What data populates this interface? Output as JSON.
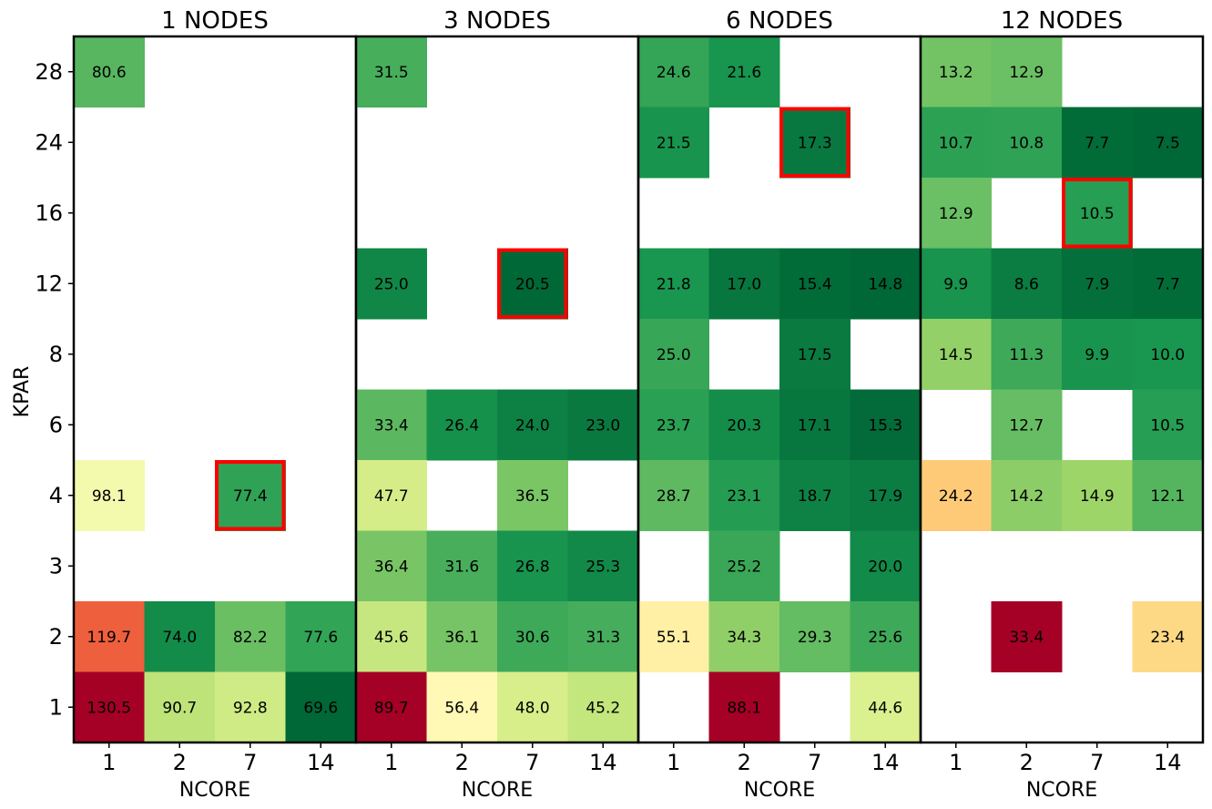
{
  "chart_data": {
    "type": "heatmap",
    "colormap": "RdYlGn_r",
    "ylabel": "KPAR",
    "y_ticks": [
      "28",
      "24",
      "16",
      "12",
      "8",
      "6",
      "4",
      "3",
      "2",
      "1"
    ],
    "highlight_color": "#ff0000",
    "panels": [
      {
        "title": "1 NODES",
        "xlabel": "NCORE",
        "x_ticks": [
          "1",
          "2",
          "7",
          "14"
        ],
        "cells": [
          {
            "kpar": "28",
            "ncore": "1",
            "value": 80.6
          },
          {
            "kpar": "4",
            "ncore": "1",
            "value": 98.1
          },
          {
            "kpar": "4",
            "ncore": "7",
            "value": 77.4,
            "highlight": true
          },
          {
            "kpar": "2",
            "ncore": "1",
            "value": 119.7
          },
          {
            "kpar": "2",
            "ncore": "2",
            "value": 74.0
          },
          {
            "kpar": "2",
            "ncore": "7",
            "value": 82.2
          },
          {
            "kpar": "2",
            "ncore": "14",
            "value": 77.6
          },
          {
            "kpar": "1",
            "ncore": "1",
            "value": 130.5
          },
          {
            "kpar": "1",
            "ncore": "2",
            "value": 90.7
          },
          {
            "kpar": "1",
            "ncore": "7",
            "value": 92.8
          },
          {
            "kpar": "1",
            "ncore": "14",
            "value": 69.6
          }
        ]
      },
      {
        "title": "3 NODES",
        "xlabel": "NCORE",
        "x_ticks": [
          "1",
          "2",
          "7",
          "14"
        ],
        "cells": [
          {
            "kpar": "28",
            "ncore": "1",
            "value": 31.5
          },
          {
            "kpar": "12",
            "ncore": "1",
            "value": 25.0
          },
          {
            "kpar": "12",
            "ncore": "7",
            "value": 20.5,
            "highlight": true
          },
          {
            "kpar": "6",
            "ncore": "1",
            "value": 33.4
          },
          {
            "kpar": "6",
            "ncore": "2",
            "value": 26.4
          },
          {
            "kpar": "6",
            "ncore": "7",
            "value": 24.0
          },
          {
            "kpar": "6",
            "ncore": "14",
            "value": 23.0
          },
          {
            "kpar": "4",
            "ncore": "1",
            "value": 47.7
          },
          {
            "kpar": "4",
            "ncore": "7",
            "value": 36.5
          },
          {
            "kpar": "3",
            "ncore": "1",
            "value": 36.4
          },
          {
            "kpar": "3",
            "ncore": "2",
            "value": 31.6
          },
          {
            "kpar": "3",
            "ncore": "7",
            "value": 26.8
          },
          {
            "kpar": "3",
            "ncore": "14",
            "value": 25.3
          },
          {
            "kpar": "2",
            "ncore": "1",
            "value": 45.6
          },
          {
            "kpar": "2",
            "ncore": "2",
            "value": 36.1
          },
          {
            "kpar": "2",
            "ncore": "7",
            "value": 30.6
          },
          {
            "kpar": "2",
            "ncore": "14",
            "value": 31.3
          },
          {
            "kpar": "1",
            "ncore": "1",
            "value": 89.7
          },
          {
            "kpar": "1",
            "ncore": "2",
            "value": 56.4
          },
          {
            "kpar": "1",
            "ncore": "7",
            "value": 48.0
          },
          {
            "kpar": "1",
            "ncore": "14",
            "value": 45.2
          }
        ]
      },
      {
        "title": "6 NODES",
        "xlabel": "NCORE",
        "x_ticks": [
          "1",
          "2",
          "7",
          "14"
        ],
        "cells": [
          {
            "kpar": "28",
            "ncore": "1",
            "value": 24.6
          },
          {
            "kpar": "28",
            "ncore": "2",
            "value": 21.6
          },
          {
            "kpar": "24",
            "ncore": "1",
            "value": 21.5
          },
          {
            "kpar": "24",
            "ncore": "7",
            "value": 17.3,
            "highlight": true
          },
          {
            "kpar": "12",
            "ncore": "1",
            "value": 21.8
          },
          {
            "kpar": "12",
            "ncore": "2",
            "value": 17.0
          },
          {
            "kpar": "12",
            "ncore": "7",
            "value": 15.4
          },
          {
            "kpar": "12",
            "ncore": "14",
            "value": 14.8
          },
          {
            "kpar": "8",
            "ncore": "1",
            "value": 25.0
          },
          {
            "kpar": "8",
            "ncore": "7",
            "value": 17.5
          },
          {
            "kpar": "6",
            "ncore": "1",
            "value": 23.7
          },
          {
            "kpar": "6",
            "ncore": "2",
            "value": 20.3
          },
          {
            "kpar": "6",
            "ncore": "7",
            "value": 17.1
          },
          {
            "kpar": "6",
            "ncore": "14",
            "value": 15.3
          },
          {
            "kpar": "4",
            "ncore": "1",
            "value": 28.7
          },
          {
            "kpar": "4",
            "ncore": "2",
            "value": 23.1
          },
          {
            "kpar": "4",
            "ncore": "7",
            "value": 18.7
          },
          {
            "kpar": "4",
            "ncore": "14",
            "value": 17.9
          },
          {
            "kpar": "3",
            "ncore": "2",
            "value": 25.2
          },
          {
            "kpar": "3",
            "ncore": "14",
            "value": 20.0
          },
          {
            "kpar": "2",
            "ncore": "1",
            "value": 55.1
          },
          {
            "kpar": "2",
            "ncore": "2",
            "value": 34.3
          },
          {
            "kpar": "2",
            "ncore": "7",
            "value": 29.3
          },
          {
            "kpar": "2",
            "ncore": "14",
            "value": 25.6
          },
          {
            "kpar": "1",
            "ncore": "2",
            "value": 88.1
          },
          {
            "kpar": "1",
            "ncore": "14",
            "value": 44.6
          }
        ]
      },
      {
        "title": "12 NODES",
        "xlabel": "NCORE",
        "x_ticks": [
          "1",
          "2",
          "7",
          "14"
        ],
        "cells": [
          {
            "kpar": "28",
            "ncore": "1",
            "value": 13.2
          },
          {
            "kpar": "28",
            "ncore": "2",
            "value": 12.9
          },
          {
            "kpar": "24",
            "ncore": "1",
            "value": 10.7
          },
          {
            "kpar": "24",
            "ncore": "2",
            "value": 10.8
          },
          {
            "kpar": "24",
            "ncore": "7",
            "value": 7.7
          },
          {
            "kpar": "24",
            "ncore": "14",
            "value": 7.5
          },
          {
            "kpar": "16",
            "ncore": "1",
            "value": 12.9
          },
          {
            "kpar": "16",
            "ncore": "7",
            "value": 10.5,
            "highlight": true
          },
          {
            "kpar": "12",
            "ncore": "1",
            "value": 9.9
          },
          {
            "kpar": "12",
            "ncore": "2",
            "value": 8.6
          },
          {
            "kpar": "12",
            "ncore": "7",
            "value": 7.9
          },
          {
            "kpar": "12",
            "ncore": "14",
            "value": 7.7
          },
          {
            "kpar": "8",
            "ncore": "1",
            "value": 14.5
          },
          {
            "kpar": "8",
            "ncore": "2",
            "value": 11.3
          },
          {
            "kpar": "8",
            "ncore": "7",
            "value": 9.9
          },
          {
            "kpar": "8",
            "ncore": "14",
            "value": 10.0
          },
          {
            "kpar": "6",
            "ncore": "2",
            "value": 12.7
          },
          {
            "kpar": "6",
            "ncore": "14",
            "value": 10.5
          },
          {
            "kpar": "4",
            "ncore": "1",
            "value": 24.2
          },
          {
            "kpar": "4",
            "ncore": "2",
            "value": 14.2
          },
          {
            "kpar": "4",
            "ncore": "7",
            "value": 14.9
          },
          {
            "kpar": "4",
            "ncore": "14",
            "value": 12.1
          },
          {
            "kpar": "2",
            "ncore": "2",
            "value": 33.4
          },
          {
            "kpar": "2",
            "ncore": "14",
            "value": 23.4
          }
        ]
      }
    ]
  }
}
